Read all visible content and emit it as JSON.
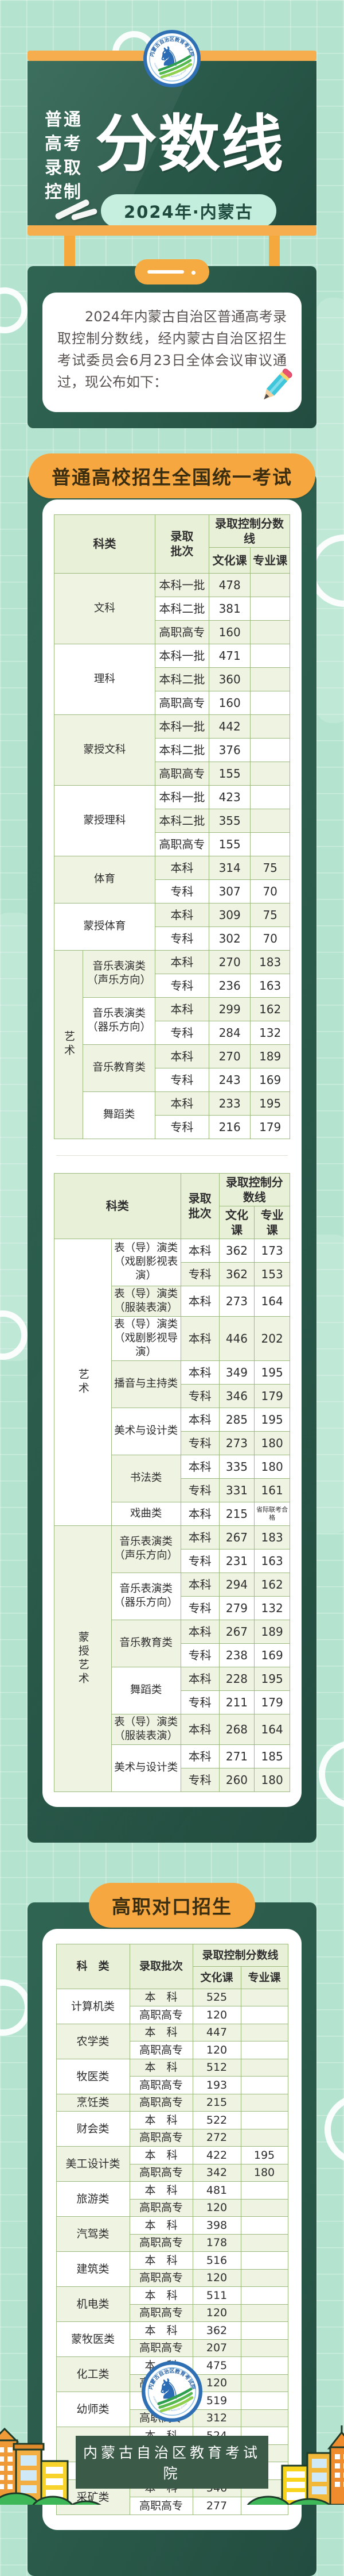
{
  "colors": {
    "accent_orange": "#F7A73F",
    "board_green": "#2A5A4A",
    "background_mint": "#B4E4D0",
    "table_light_row": "#EEF3E2",
    "table_border": "#9CB97E"
  },
  "header": {
    "vertical_lines": [
      "普通",
      "高考",
      "录取",
      "控制"
    ],
    "title": "分数线",
    "year_badge": "2024年·内蒙古"
  },
  "logo": {
    "arc_text": "内蒙古自治区教育考试院",
    "arc_text_en": "Education Examinations Authority of Inner Mongolia"
  },
  "intro": {
    "text": "2024年内蒙古自治区普通高考录取控制分数线，经内蒙古自治区招生考试委员会6月23日全体会议审议通过，现公布如下："
  },
  "sections": [
    {
      "title": "普通高校招生全国统一考试",
      "tables": [
        {
          "header": {
            "category": "科类",
            "batch": "录取\n批次",
            "score_group": "录取控制分数线",
            "culture": "文化课",
            "major": "专业课"
          },
          "supergroups": [
            {
              "label": "艺术",
              "from": 6,
              "to": 9,
              "shade": "lg"
            }
          ],
          "groups": [
            {
              "category": "文科",
              "rows": [
                [
                  "本科一批",
                  "478",
                  ""
                ],
                [
                  "本科二批",
                  "381",
                  ""
                ],
                [
                  "高职高专",
                  "160",
                  ""
                ]
              ]
            },
            {
              "category": "理科",
              "rows": [
                [
                  "本科一批",
                  "471",
                  ""
                ],
                [
                  "本科二批",
                  "360",
                  ""
                ],
                [
                  "高职高专",
                  "160",
                  ""
                ]
              ]
            },
            {
              "category": "蒙授文科",
              "rows": [
                [
                  "本科一批",
                  "442",
                  ""
                ],
                [
                  "本科二批",
                  "376",
                  ""
                ],
                [
                  "高职高专",
                  "155",
                  ""
                ]
              ]
            },
            {
              "category": "蒙授理科",
              "rows": [
                [
                  "本科一批",
                  "423",
                  ""
                ],
                [
                  "本科二批",
                  "355",
                  ""
                ],
                [
                  "高职高专",
                  "155",
                  ""
                ]
              ]
            },
            {
              "category": "体育",
              "rows": [
                [
                  "本科",
                  "314",
                  "75"
                ],
                [
                  "专科",
                  "307",
                  "70"
                ]
              ]
            },
            {
              "category": "蒙授体育",
              "rows": [
                [
                  "本科",
                  "309",
                  "75"
                ],
                [
                  "专科",
                  "302",
                  "70"
                ]
              ]
            },
            {
              "category": "音乐表演类\n（声乐方向）",
              "rows": [
                [
                  "本科",
                  "270",
                  "183"
                ],
                [
                  "专科",
                  "236",
                  "163"
                ]
              ]
            },
            {
              "category": "音乐表演类\n（器乐方向）",
              "rows": [
                [
                  "本科",
                  "299",
                  "162"
                ],
                [
                  "专科",
                  "284",
                  "132"
                ]
              ]
            },
            {
              "category": "音乐教育类",
              "rows": [
                [
                  "本科",
                  "270",
                  "189"
                ],
                [
                  "专科",
                  "243",
                  "169"
                ]
              ]
            },
            {
              "category": "舞蹈类",
              "rows": [
                [
                  "本科",
                  "233",
                  "195"
                ],
                [
                  "专科",
                  "216",
                  "179"
                ]
              ]
            }
          ]
        },
        {
          "header": {
            "category": "科类",
            "batch": "录取\n批次",
            "score_group": "录取控制分数线",
            "culture": "文化课",
            "major": "专业课"
          },
          "supergroups": [
            {
              "label": "艺术",
              "from": 0,
              "to": 6,
              "shade": "w"
            },
            {
              "label": "蒙授艺术",
              "from": 7,
              "to": 12,
              "shade": "lg"
            }
          ],
          "groups": [
            {
              "category": "表（导）演类\n（戏剧影视表演）",
              "rows": [
                [
                  "本科",
                  "362",
                  "173"
                ],
                [
                  "专科",
                  "362",
                  "153"
                ]
              ]
            },
            {
              "category": "表（导）演类\n（服装表演）",
              "rows": [
                [
                  "本科",
                  "273",
                  "164"
                ]
              ]
            },
            {
              "category": "表（导）演类\n（戏剧影视导演）",
              "rows": [
                [
                  "本科",
                  "446",
                  "202"
                ]
              ]
            },
            {
              "category": "播音与主持类",
              "rows": [
                [
                  "本科",
                  "349",
                  "195"
                ],
                [
                  "专科",
                  "346",
                  "179"
                ]
              ]
            },
            {
              "category": "美术与设计类",
              "rows": [
                [
                  "本科",
                  "285",
                  "195"
                ],
                [
                  "专科",
                  "273",
                  "180"
                ]
              ]
            },
            {
              "category": "书法类",
              "rows": [
                [
                  "本科",
                  "335",
                  "180"
                ],
                [
                  "专科",
                  "331",
                  "161"
                ]
              ]
            },
            {
              "category": "戏曲类",
              "rows": [
                [
                  "本科",
                  "215",
                  "省际联考合格"
                ]
              ]
            },
            {
              "category": "音乐表演类\n（声乐方向）",
              "rows": [
                [
                  "本科",
                  "267",
                  "183"
                ],
                [
                  "专科",
                  "231",
                  "163"
                ]
              ]
            },
            {
              "category": "音乐表演类\n（器乐方向）",
              "rows": [
                [
                  "本科",
                  "294",
                  "162"
                ],
                [
                  "专科",
                  "279",
                  "132"
                ]
              ]
            },
            {
              "category": "音乐教育类",
              "rows": [
                [
                  "本科",
                  "267",
                  "189"
                ],
                [
                  "专科",
                  "238",
                  "169"
                ]
              ]
            },
            {
              "category": "舞蹈类",
              "rows": [
                [
                  "本科",
                  "228",
                  "195"
                ],
                [
                  "专科",
                  "211",
                  "179"
                ]
              ]
            },
            {
              "category": "表（导）演类\n（服装表演）",
              "rows": [
                [
                  "本科",
                  "268",
                  "164"
                ]
              ]
            },
            {
              "category": "美术与设计类",
              "rows": [
                [
                  "本科",
                  "271",
                  "185"
                ],
                [
                  "专科",
                  "260",
                  "180"
                ]
              ]
            }
          ]
        }
      ]
    },
    {
      "title": "高职对口招生",
      "tables": [
        {
          "header": {
            "category": "科　类",
            "batch": "录取批次",
            "score_group": "录取控制分数线",
            "culture": "文化课",
            "major": "专业课"
          },
          "supergroups": [],
          "groups": [
            {
              "category": "计算机类",
              "rows": [
                [
                  "本　科",
                  "525",
                  ""
                ],
                [
                  "高职高专",
                  "120",
                  ""
                ]
              ]
            },
            {
              "category": "农学类",
              "rows": [
                [
                  "本　科",
                  "447",
                  ""
                ],
                [
                  "高职高专",
                  "120",
                  ""
                ]
              ]
            },
            {
              "category": "牧医类",
              "rows": [
                [
                  "本　科",
                  "512",
                  ""
                ],
                [
                  "高职高专",
                  "193",
                  ""
                ]
              ]
            },
            {
              "category": "烹饪类",
              "rows": [
                [
                  "高职高专",
                  "215",
                  ""
                ]
              ]
            },
            {
              "category": "财会类",
              "rows": [
                [
                  "本　科",
                  "522",
                  ""
                ],
                [
                  "高职高专",
                  "272",
                  ""
                ]
              ]
            },
            {
              "category": "美工设计类",
              "rows": [
                [
                  "本　科",
                  "422",
                  "195"
                ],
                [
                  "高职高专",
                  "342",
                  "180"
                ]
              ]
            },
            {
              "category": "旅游类",
              "rows": [
                [
                  "本　科",
                  "481",
                  ""
                ],
                [
                  "高职高专",
                  "120",
                  ""
                ]
              ]
            },
            {
              "category": "汽驾类",
              "rows": [
                [
                  "本　科",
                  "398",
                  ""
                ],
                [
                  "高职高专",
                  "178",
                  ""
                ]
              ]
            },
            {
              "category": "建筑类",
              "rows": [
                [
                  "本　科",
                  "516",
                  ""
                ],
                [
                  "高职高专",
                  "120",
                  ""
                ]
              ]
            },
            {
              "category": "机电类",
              "rows": [
                [
                  "本　科",
                  "511",
                  ""
                ],
                [
                  "高职高专",
                  "120",
                  ""
                ]
              ]
            },
            {
              "category": "蒙牧医类",
              "rows": [
                [
                  "本　科",
                  "362",
                  ""
                ],
                [
                  "高职高专",
                  "207",
                  ""
                ]
              ]
            },
            {
              "category": "化工类",
              "rows": [
                [
                  "本　科",
                  "475",
                  ""
                ],
                [
                  "高职高专",
                  "120",
                  ""
                ]
              ]
            },
            {
              "category": "幼师类",
              "rows": [
                [
                  "本　科",
                  "519",
                  ""
                ],
                [
                  "高职高专",
                  "312",
                  ""
                ]
              ]
            },
            {
              "category": "医学类",
              "rows": [
                [
                  "本　科",
                  "524",
                  ""
                ],
                [
                  "高职高专",
                  "249",
                  ""
                ]
              ]
            },
            {
              "category": "体育类",
              "rows": [
                [
                  "高职高专",
                  "120",
                  ""
                ]
              ]
            },
            {
              "category": "采矿类",
              "rows": [
                [
                  "本　科",
                  "546",
                  ""
                ],
                [
                  "高职高专",
                  "277",
                  ""
                ]
              ]
            }
          ]
        }
      ]
    }
  ],
  "footer": {
    "org": "内蒙古自治区教育考试院"
  }
}
